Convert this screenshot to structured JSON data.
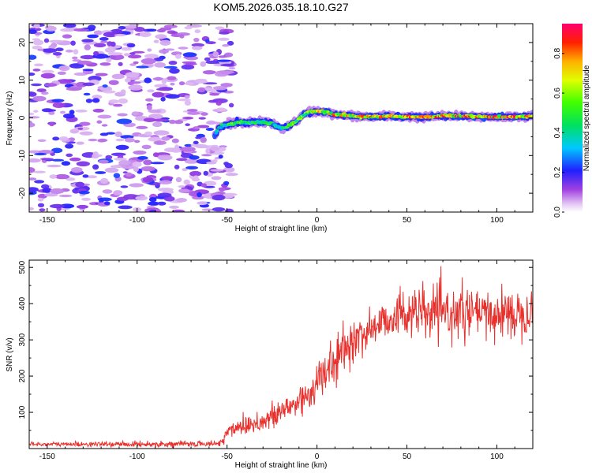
{
  "title": "KOM5.2026.035.18.10.G27",
  "chart_data": [
    {
      "type": "heatmap",
      "panel": "top",
      "xlabel": "Height of straight line (km)",
      "ylabel": "Frequency (Hz)",
      "xlim": [
        -160,
        120
      ],
      "ylim": [
        -25,
        25
      ],
      "xticks": [
        "-150",
        "-100",
        "-50",
        "0",
        "50",
        "100"
      ],
      "xtick_values": [
        -150,
        -100,
        -50,
        0,
        50,
        100
      ],
      "yticks": [
        "20",
        "10",
        "0",
        "-10",
        "-20"
      ],
      "ytick_values": [
        20,
        10,
        0,
        -10,
        -20
      ],
      "noise_region_x": [
        -160,
        -55
      ],
      "noise_amplitude_range": [
        0.05,
        0.25
      ],
      "signal_trace": {
        "x": [
          -57,
          -55,
          -52,
          -50,
          -45,
          -40,
          -35,
          -30,
          -25,
          -20,
          -17,
          -12,
          -8,
          -5,
          0,
          5,
          10,
          20,
          30,
          40,
          50,
          60,
          70,
          80,
          90,
          100,
          110,
          120
        ],
        "frequency": [
          -5,
          -3,
          -2,
          -1.8,
          -1.3,
          -1.2,
          -1.2,
          -1,
          -1.5,
          -2.8,
          -2.5,
          -1,
          0.5,
          1.5,
          1.8,
          1.5,
          0.8,
          0.5,
          0.2,
          0.5,
          0.3,
          0.2,
          0.5,
          0.4,
          0.3,
          0.2,
          0.3,
          0.5
        ],
        "amplitude": [
          0.3,
          0.4,
          0.5,
          0.55,
          0.6,
          0.55,
          0.6,
          0.55,
          0.5,
          0.5,
          0.55,
          0.6,
          0.65,
          0.7,
          0.8,
          0.75,
          0.85,
          0.8,
          0.85,
          0.9,
          0.85,
          0.9,
          0.95,
          0.9,
          0.95,
          0.9,
          0.95,
          0.9
        ]
      }
    },
    {
      "type": "colorbar",
      "label": "Normalized spectral amplitude",
      "range": [
        0,
        0.95
      ],
      "ticks": [
        "0.0",
        "0.2",
        "0.4",
        "0.6",
        "0.8"
      ],
      "tick_values": [
        0,
        0.2,
        0.4,
        0.6,
        0.8
      ]
    },
    {
      "type": "line",
      "panel": "bottom",
      "xlabel": "Height of straight line (km)",
      "ylabel": "SNR (v/v)",
      "xlim": [
        -160,
        120
      ],
      "ylim": [
        0,
        520
      ],
      "xticks": [
        "-150",
        "-100",
        "-50",
        "0",
        "50",
        "100"
      ],
      "xtick_values": [
        -150,
        -100,
        -50,
        0,
        50,
        100
      ],
      "yticks": [
        "100",
        "200",
        "300",
        "400",
        "500"
      ],
      "ytick_values": [
        100,
        200,
        300,
        400,
        500
      ],
      "color": "#e8302c",
      "series": [
        {
          "name": "SNR",
          "trend_x": [
            -160,
            -100,
            -55,
            -52,
            -50,
            -45,
            -40,
            -35,
            -30,
            -25,
            -20,
            -15,
            -10,
            -5,
            0,
            5,
            10,
            15,
            20,
            25,
            30,
            35,
            40,
            45,
            50,
            55,
            60,
            65,
            70,
            75,
            80,
            85,
            90,
            95,
            100,
            105,
            110,
            115,
            120
          ],
          "trend_y": [
            12,
            12,
            13,
            25,
            45,
            60,
            65,
            70,
            75,
            85,
            100,
            115,
            130,
            150,
            180,
            210,
            240,
            270,
            295,
            315,
            330,
            345,
            360,
            370,
            375,
            375,
            370,
            375,
            370,
            375,
            375,
            370,
            375,
            365,
            370,
            375,
            370,
            380,
            380
          ],
          "noise_sd_x": [
            -160,
            -55,
            -50,
            -20,
            0,
            30,
            60,
            120
          ],
          "noise_sd": [
            3,
            4,
            12,
            20,
            30,
            28,
            35,
            32
          ]
        }
      ]
    }
  ]
}
